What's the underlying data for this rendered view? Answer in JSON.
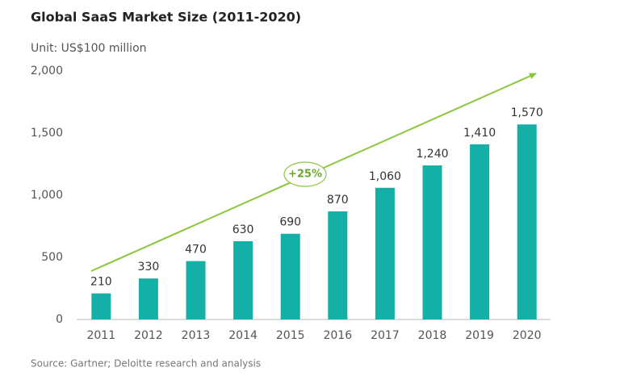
{
  "chart_data": {
    "type": "bar",
    "title": "Global SaaS Market Size (2011-2020)",
    "subtitle": "Unit: US$100 million",
    "source": "Source: Gartner; Deloitte research and analysis",
    "annotation": "+25%",
    "categories": [
      "2011",
      "2012",
      "2013",
      "2014",
      "2015",
      "2016",
      "2017",
      "2018",
      "2019",
      "2020"
    ],
    "values": [
      210,
      330,
      470,
      630,
      690,
      870,
      1060,
      1240,
      1410,
      1570
    ],
    "value_labels": [
      "210",
      "330",
      "470",
      "630",
      "690",
      "870",
      "1,060",
      "1,240",
      "1,410",
      "1,570"
    ],
    "color": "#14afa6",
    "ylim": [
      0,
      2000
    ],
    "yticks": [
      0,
      500,
      {
        "value": 1000,
        "label": "1,000"
      },
      {
        "value": 1500,
        "label": "1,500"
      },
      {
        "value": 2000,
        "label": "2,000"
      }
    ],
    "grid": false
  }
}
